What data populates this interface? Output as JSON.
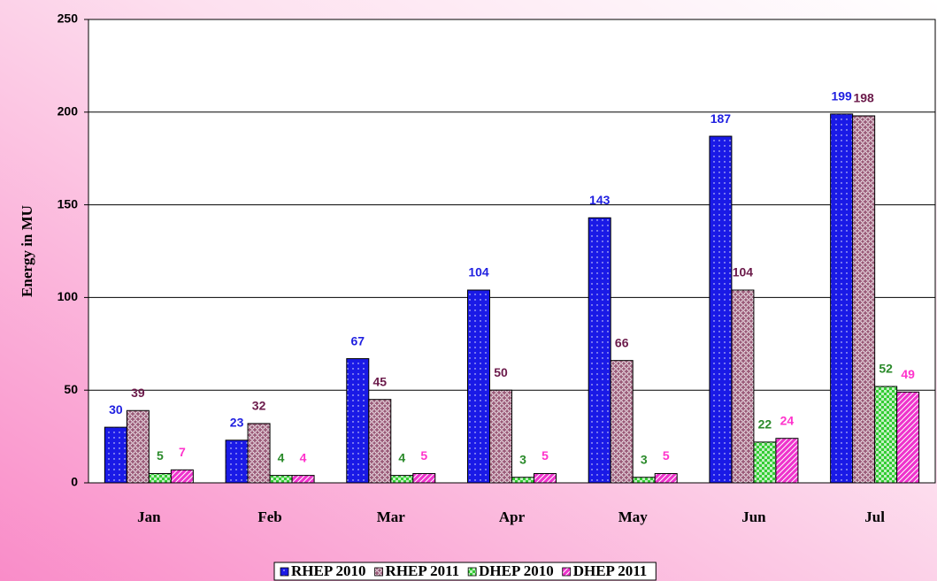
{
  "chart_data": {
    "type": "bar",
    "y_label": "Energy in MU",
    "categories": [
      "Jan",
      "Feb",
      "Mar",
      "Apr",
      "May",
      "Jun",
      "Jul"
    ],
    "series": [
      {
        "name": "RHEP 2010",
        "color": "#1a1ae6",
        "label_color": "#1f1fe0",
        "values": [
          30,
          23,
          67,
          104,
          143,
          187,
          199
        ]
      },
      {
        "name": "RHEP 2011",
        "color": "#9a5a78",
        "label_color": "#6b1a4a",
        "values": [
          39,
          32,
          45,
          50,
          66,
          104,
          198
        ]
      },
      {
        "name": "DHEP 2010",
        "color": "#33cc33",
        "label_color": "#2a8a2a",
        "values": [
          5,
          4,
          4,
          3,
          3,
          22,
          52
        ]
      },
      {
        "name": "DHEP 2011",
        "color": "#ee33cc",
        "label_color": "#ff33cc",
        "values": [
          7,
          4,
          5,
          5,
          5,
          24,
          49
        ]
      }
    ],
    "ylim": [
      0,
      250
    ],
    "yticks": [
      0,
      50,
      100,
      150,
      200,
      250
    ],
    "grid": true,
    "legend": "bottom"
  }
}
